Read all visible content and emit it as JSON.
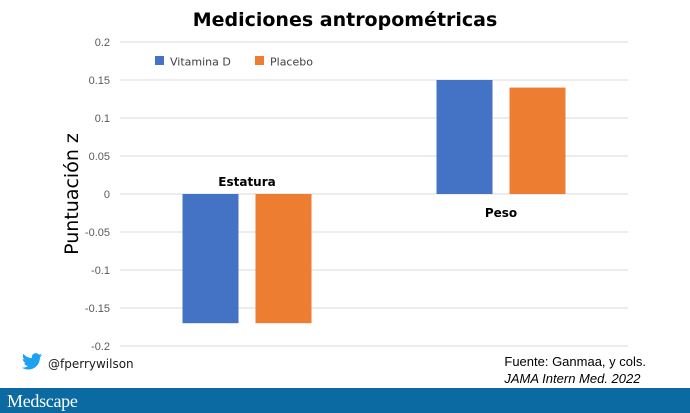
{
  "chart_data": {
    "type": "bar",
    "title": "Mediciones antropométricas",
    "ylabel": "Puntuación z",
    "xlabel": "",
    "ylim": [
      -0.2,
      0.2
    ],
    "yticks": [
      0.2,
      0.15,
      0.1,
      0.05,
      0,
      -0.05,
      -0.1,
      -0.15,
      -0.2
    ],
    "ytick_labels": [
      "0.2",
      "0.15",
      "0.1",
      "0.05",
      "0",
      "-0.05",
      "-0.1",
      "-0.15",
      "-0.2"
    ],
    "categories": [
      "Estatura",
      "Peso"
    ],
    "series": [
      {
        "name": "Vitamina D",
        "values": [
          -0.17,
          0.15
        ],
        "color": "#4472c4"
      },
      {
        "name": "Placebo",
        "values": [
          -0.17,
          0.14
        ],
        "color": "#ed7d31"
      }
    ],
    "grid": true,
    "legend": "top-left"
  },
  "social": {
    "handle": "@fperrywilson",
    "icon": "twitter-bird-icon"
  },
  "source": {
    "line1": "Fuente: Ganmaa, y cols.",
    "line2": "JAMA Intern Med. 2022"
  },
  "brand": {
    "name": "Medscape"
  }
}
